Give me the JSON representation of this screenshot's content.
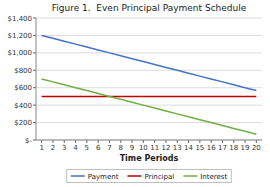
{
  "chart_data": {
    "type": "line",
    "title": "Figure 1.  Even Principal Payment Schedule",
    "x_label": "Time Periods",
    "x": [
      1,
      2,
      3,
      4,
      5,
      6,
      7,
      8,
      9,
      10,
      11,
      12,
      13,
      14,
      15,
      16,
      17,
      18,
      19,
      20
    ],
    "series": [
      {
        "name": "Payment",
        "color": "#4472C4",
        "values": [
          1200,
          1167,
          1133,
          1100,
          1067,
          1033,
          1000,
          967,
          933,
          900,
          867,
          833,
          800,
          767,
          733,
          700,
          667,
          633,
          600,
          567
        ]
      },
      {
        "name": "Principal",
        "color": "#C00000",
        "values": [
          500,
          500,
          500,
          500,
          500,
          500,
          500,
          500,
          500,
          500,
          500,
          500,
          500,
          500,
          500,
          500,
          500,
          500,
          500,
          500
        ]
      },
      {
        "name": "Interest",
        "color": "#70AD47",
        "values": [
          700,
          667,
          633,
          600,
          567,
          533,
          500,
          467,
          433,
          400,
          367,
          333,
          300,
          267,
          233,
          200,
          167,
          133,
          100,
          67
        ]
      }
    ],
    "xlim": [
      0.5,
      20.5
    ],
    "xticks": [
      1,
      2,
      3,
      4,
      5,
      6,
      7,
      8,
      9,
      10,
      11,
      12,
      13,
      14,
      15,
      16,
      17,
      18,
      19,
      20
    ],
    "ylim": [
      0,
      1400
    ],
    "yticks": [
      {
        "value": 0,
        "label": "$-"
      },
      {
        "value": 200,
        "label": "$200"
      },
      {
        "value": 400,
        "label": "$400"
      },
      {
        "value": 600,
        "label": "$600"
      },
      {
        "value": 800,
        "label": "$800"
      },
      {
        "value": 1000,
        "label": "$1,000"
      },
      {
        "value": 1200,
        "label": "$1,200"
      },
      {
        "value": 1400,
        "label": "$1,400"
      }
    ],
    "grid": true,
    "legend": "bottom"
  }
}
